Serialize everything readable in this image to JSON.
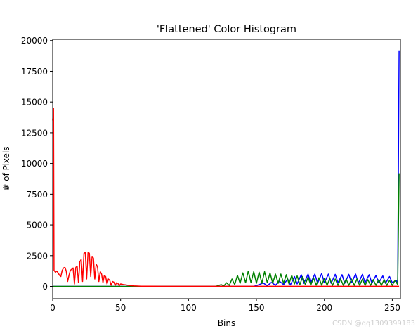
{
  "chart_data": {
    "type": "line",
    "title": "'Flattened' Color Histogram",
    "xlabel": "Bins",
    "ylabel": "# of Pixels",
    "xlim": [
      0,
      256
    ],
    "ylim": [
      -1000,
      20100
    ],
    "xticks": [
      0,
      50,
      100,
      150,
      200,
      250
    ],
    "yticks": [
      0,
      2500,
      5000,
      7500,
      10000,
      12500,
      15000,
      17500,
      20000
    ],
    "grid": false,
    "colors": {
      "blue": "#0000ff",
      "green": "#008000",
      "red": "#ff0000"
    },
    "series": [
      {
        "color": "blue",
        "points": [
          [
            0,
            0
          ],
          [
            120,
            0
          ],
          [
            148,
            0
          ],
          [
            152,
            150
          ],
          [
            155,
            280
          ],
          [
            158,
            60
          ],
          [
            161,
            320
          ],
          [
            164,
            100
          ],
          [
            167,
            420
          ],
          [
            170,
            150
          ],
          [
            173,
            600
          ],
          [
            175,
            120
          ],
          [
            178,
            800
          ],
          [
            180,
            200
          ],
          [
            183,
            950
          ],
          [
            185,
            250
          ],
          [
            188,
            1000
          ],
          [
            190,
            300
          ],
          [
            193,
            1000
          ],
          [
            195,
            250
          ],
          [
            198,
            1050
          ],
          [
            200,
            300
          ],
          [
            203,
            1000
          ],
          [
            205,
            250
          ],
          [
            208,
            980
          ],
          [
            210,
            300
          ],
          [
            213,
            950
          ],
          [
            215,
            250
          ],
          [
            218,
            980
          ],
          [
            220,
            300
          ],
          [
            223,
            1000
          ],
          [
            225,
            250
          ],
          [
            228,
            980
          ],
          [
            230,
            300
          ],
          [
            233,
            950
          ],
          [
            235,
            250
          ],
          [
            238,
            900
          ],
          [
            240,
            300
          ],
          [
            243,
            850
          ],
          [
            245,
            250
          ],
          [
            248,
            800
          ],
          [
            250,
            300
          ],
          [
            253,
            500
          ],
          [
            254,
            200
          ],
          [
            255,
            19200
          ]
        ]
      },
      {
        "color": "green",
        "points": [
          [
            0,
            0
          ],
          [
            120,
            0
          ],
          [
            124,
            150
          ],
          [
            126,
            40
          ],
          [
            128,
            300
          ],
          [
            130,
            80
          ],
          [
            132,
            600
          ],
          [
            134,
            150
          ],
          [
            136,
            900
          ],
          [
            138,
            250
          ],
          [
            140,
            1100
          ],
          [
            142,
            300
          ],
          [
            144,
            1250
          ],
          [
            146,
            300
          ],
          [
            148,
            1200
          ],
          [
            150,
            250
          ],
          [
            152,
            1150
          ],
          [
            154,
            250
          ],
          [
            156,
            1200
          ],
          [
            158,
            300
          ],
          [
            160,
            1100
          ],
          [
            162,
            250
          ],
          [
            164,
            1000
          ],
          [
            166,
            250
          ],
          [
            168,
            1000
          ],
          [
            170,
            250
          ],
          [
            172,
            950
          ],
          [
            174,
            200
          ],
          [
            176,
            900
          ],
          [
            178,
            200
          ],
          [
            180,
            850
          ],
          [
            182,
            150
          ],
          [
            184,
            800
          ],
          [
            186,
            150
          ],
          [
            188,
            750
          ],
          [
            190,
            100
          ],
          [
            192,
            700
          ],
          [
            194,
            100
          ],
          [
            196,
            700
          ],
          [
            198,
            100
          ],
          [
            200,
            650
          ],
          [
            202,
            80
          ],
          [
            204,
            650
          ],
          [
            206,
            80
          ],
          [
            208,
            600
          ],
          [
            210,
            80
          ],
          [
            212,
            600
          ],
          [
            214,
            80
          ],
          [
            216,
            600
          ],
          [
            218,
            80
          ],
          [
            220,
            600
          ],
          [
            222,
            80
          ],
          [
            224,
            600
          ],
          [
            226,
            80
          ],
          [
            228,
            600
          ],
          [
            230,
            80
          ],
          [
            232,
            550
          ],
          [
            234,
            80
          ],
          [
            236,
            550
          ],
          [
            238,
            80
          ],
          [
            240,
            550
          ],
          [
            242,
            80
          ],
          [
            244,
            550
          ],
          [
            246,
            80
          ],
          [
            248,
            500
          ],
          [
            250,
            80
          ],
          [
            252,
            500
          ],
          [
            254,
            150
          ],
          [
            255,
            9200
          ]
        ]
      },
      {
        "color": "red",
        "points": [
          [
            0,
            13500
          ],
          [
            0.6,
            14500
          ],
          [
            1,
            1300
          ],
          [
            2,
            1150
          ],
          [
            3,
            1250
          ],
          [
            4,
            1100
          ],
          [
            5,
            900
          ],
          [
            6,
            800
          ],
          [
            7,
            1300
          ],
          [
            8,
            1500
          ],
          [
            9,
            1550
          ],
          [
            10,
            1250
          ],
          [
            11,
            400
          ],
          [
            12,
            900
          ],
          [
            13,
            1300
          ],
          [
            14,
            1400
          ],
          [
            15,
            1500
          ],
          [
            16,
            200
          ],
          [
            17,
            1550
          ],
          [
            18,
            1650
          ],
          [
            19,
            300
          ],
          [
            20,
            2000
          ],
          [
            21,
            2200
          ],
          [
            22,
            400
          ],
          [
            23,
            2700
          ],
          [
            24,
            2750
          ],
          [
            25,
            600
          ],
          [
            26,
            2750
          ],
          [
            27,
            2700
          ],
          [
            28,
            800
          ],
          [
            29,
            2450
          ],
          [
            30,
            2300
          ],
          [
            31,
            600
          ],
          [
            32,
            1800
          ],
          [
            33,
            1600
          ],
          [
            34,
            400
          ],
          [
            35,
            1200
          ],
          [
            36,
            1000
          ],
          [
            37,
            300
          ],
          [
            38,
            900
          ],
          [
            39,
            800
          ],
          [
            40,
            200
          ],
          [
            41,
            600
          ],
          [
            42,
            500
          ],
          [
            43,
            100
          ],
          [
            44,
            400
          ],
          [
            45,
            350
          ],
          [
            46,
            80
          ],
          [
            47,
            300
          ],
          [
            48,
            250
          ],
          [
            49,
            50
          ],
          [
            50,
            200
          ],
          [
            52,
            150
          ],
          [
            54,
            120
          ],
          [
            56,
            80
          ],
          [
            58,
            60
          ],
          [
            60,
            40
          ],
          [
            65,
            20
          ],
          [
            70,
            10
          ],
          [
            80,
            5
          ],
          [
            100,
            5
          ],
          [
            120,
            5
          ],
          [
            150,
            5
          ],
          [
            200,
            5
          ],
          [
            250,
            5
          ],
          [
            255,
            5
          ]
        ]
      }
    ]
  },
  "watermark": "CSDN @qq1309399183"
}
